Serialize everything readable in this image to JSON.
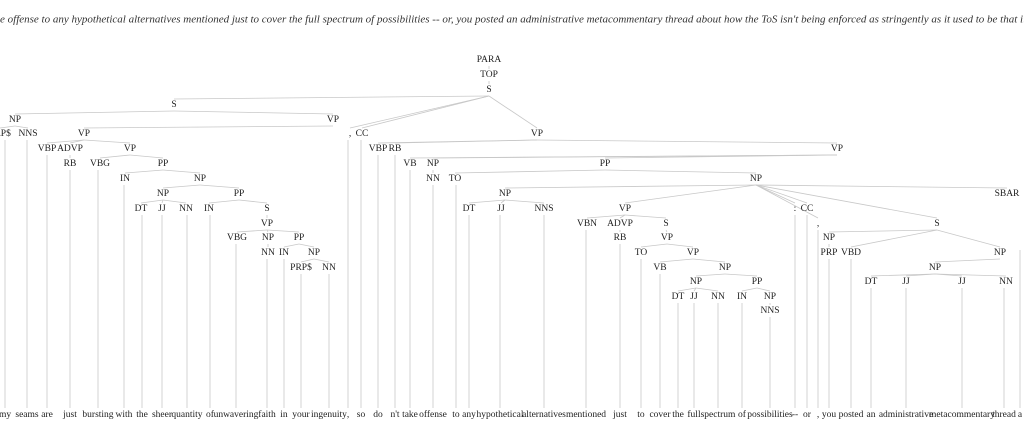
{
  "sentence": "e offense to any hypothetical alternatives mentioned just to cover the full spectrum of possibilities -- or, you posted an administrative metacommentary thread about how the ToS isn't being enforced as stringently as it used to be that i:",
  "nodes": [
    "PARA",
    "TOP",
    "S",
    "S",
    "VP",
    "NP",
    "PRP$",
    "NNS",
    "VP",
    ",",
    "CC",
    "VP",
    "VBP",
    "ADVP",
    "VP",
    "VBP",
    "RB",
    "VP",
    "RB",
    "VBG",
    "PP",
    "VB",
    "NP",
    "PP",
    "IN",
    "NP",
    "NN",
    "TO",
    "NP",
    "NP",
    "PP",
    "NP",
    "SBAR",
    "DT",
    "JJ",
    "NN",
    "IN",
    "S",
    "DT",
    "JJ",
    "NNS",
    "VP",
    ":",
    "CC",
    "VP",
    "VBN",
    "ADVP",
    "S",
    ",",
    "S",
    "VBG",
    "NP",
    "PP",
    "RB",
    "VP",
    "NP",
    "TO",
    "VP",
    "PRP",
    "VBD",
    "NP",
    "NN",
    "IN",
    "NP",
    "PRP$",
    "NN",
    "VB",
    "NP",
    "NP",
    "NP",
    "PP",
    "DT",
    "JJ",
    "JJ",
    "NN",
    "DT",
    "JJ",
    "NN",
    "IN",
    "NP",
    "NNS"
  ],
  "words": [
    "my",
    "seams",
    "are",
    "just",
    "bursting",
    "with",
    "the",
    "sheer",
    "quantity",
    "of",
    "unwavering",
    "faith",
    "in",
    "your",
    "ingenuity",
    ",",
    "so",
    "do",
    "n't",
    "take",
    "offense",
    "to",
    "any",
    "hypothetical",
    "alternatives",
    "mentioned",
    "just",
    "to",
    "cover",
    "the",
    "full",
    "spectrum",
    "of",
    "possibilities",
    "--",
    "or",
    ",",
    "you",
    "posted",
    "an",
    "administrative",
    "metacommentary",
    "thread",
    "a"
  ]
}
